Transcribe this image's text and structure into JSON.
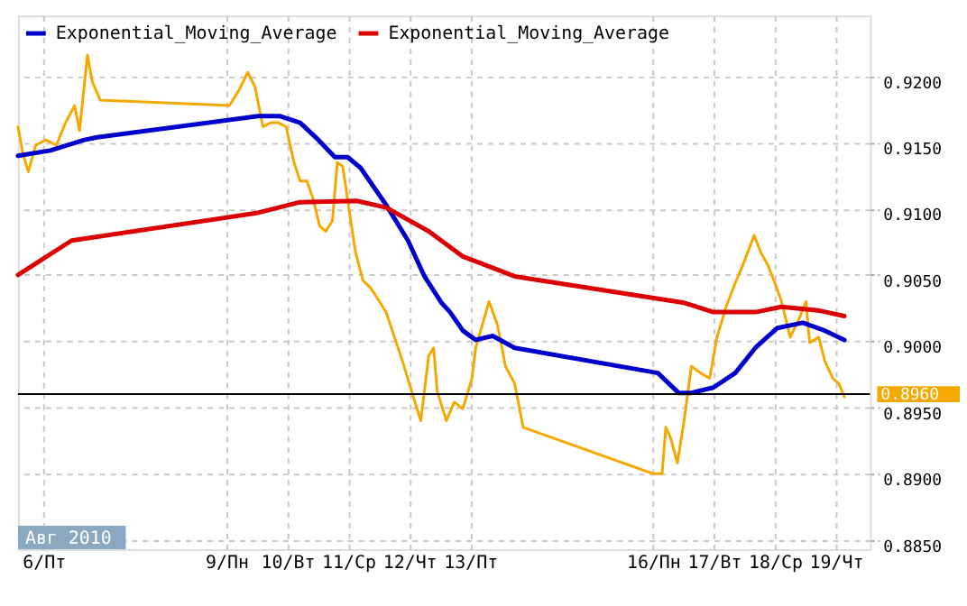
{
  "chart_data": {
    "type": "line",
    "legend": "top left",
    "grid": true,
    "xlim": [
      5.58,
      19.56
    ],
    "xticks": [
      {
        "value": 6,
        "label": "6/Пт"
      },
      {
        "value": 9,
        "label": "9/Пн"
      },
      {
        "value": 10,
        "label": "10/Вт"
      },
      {
        "value": 11,
        "label": "11/Ср"
      },
      {
        "value": 12,
        "label": "12/Чт"
      },
      {
        "value": 13,
        "label": "13/Пт"
      },
      {
        "value": 16,
        "label": "16/Пн"
      },
      {
        "value": 17,
        "label": "17/Вт"
      },
      {
        "value": 18,
        "label": "18/Ср"
      },
      {
        "value": 19,
        "label": "19/Чт"
      }
    ],
    "ylim": [
      0.8843,
      0.9246
    ],
    "yticks": [
      {
        "value": 0.885,
        "label": "0.8850"
      },
      {
        "value": 0.89,
        "label": "0.8900"
      },
      {
        "value": 0.895,
        "label": "0.8950"
      },
      {
        "value": 0.9,
        "label": "0.9000"
      },
      {
        "value": 0.905,
        "label": "0.9050"
      },
      {
        "value": 0.91,
        "label": "0.9100"
      },
      {
        "value": 0.915,
        "label": "0.9150"
      },
      {
        "value": 0.92,
        "label": "0.9200"
      }
    ],
    "series": [
      {
        "color": "#f5a800",
        "x": [
          5.58,
          5.66,
          5.75,
          5.87,
          6.04,
          6.21,
          6.36,
          6.51,
          6.59,
          6.72,
          6.8,
          6.93,
          9.05,
          9.2,
          9.35,
          9.47,
          9.6,
          9.73,
          9.85,
          9.98,
          10.11,
          10.21,
          10.32,
          10.42,
          10.53,
          10.63,
          10.74,
          10.82,
          10.91,
          11.03,
          11.12,
          11.24,
          11.37,
          11.47,
          11.62,
          11.89,
          12.04,
          12.19,
          12.32,
          12.4,
          12.46,
          12.61,
          12.74,
          12.88,
          13.03,
          13.09,
          13.31,
          13.45,
          13.58,
          13.73,
          13.87,
          16.0,
          16.15,
          16.21,
          16.29,
          16.4,
          16.51,
          16.63,
          16.78,
          16.93,
          17.05,
          17.2,
          17.35,
          17.47,
          17.66,
          17.77,
          17.89,
          18.0,
          18.11,
          18.25,
          18.4,
          18.51,
          18.57,
          18.72,
          18.82,
          18.95,
          19.05,
          19.14
        ],
        "values": [
          0.9162,
          0.9142,
          0.9128,
          0.9148,
          0.9152,
          0.9148,
          0.9165,
          0.9178,
          0.9159,
          0.9216,
          0.9196,
          0.9182,
          0.9178,
          0.9189,
          0.9203,
          0.9192,
          0.9162,
          0.9165,
          0.9165,
          0.9162,
          0.9135,
          0.9121,
          0.9121,
          0.9108,
          0.9087,
          0.9083,
          0.9091,
          0.9135,
          0.9132,
          0.9094,
          0.9067,
          0.9046,
          0.904,
          0.9033,
          0.9022,
          0.8985,
          0.8962,
          0.894,
          0.8989,
          0.8995,
          0.8962,
          0.894,
          0.8954,
          0.8949,
          0.8972,
          0.8995,
          0.903,
          0.9012,
          0.8981,
          0.8968,
          0.8935,
          0.89,
          0.89,
          0.8935,
          0.8927,
          0.8908,
          0.894,
          0.8981,
          0.8976,
          0.8972,
          0.9003,
          0.9026,
          0.9044,
          0.9057,
          0.908,
          0.9067,
          0.9057,
          0.9044,
          0.903,
          0.9003,
          0.9017,
          0.903,
          0.8999,
          0.9003,
          0.8985,
          0.8972,
          0.8968,
          0.8958
        ]
      },
      {
        "name": "Exponential_Moving_Average",
        "color": "#0000cc",
        "x": [
          5.58,
          6.11,
          6.67,
          6.88,
          9.52,
          9.87,
          10.21,
          10.51,
          10.78,
          10.99,
          11.2,
          11.62,
          11.98,
          12.25,
          12.53,
          12.67,
          12.88,
          13.09,
          13.37,
          13.73,
          16.08,
          16.42,
          16.63,
          16.99,
          17.35,
          17.68,
          18.04,
          18.46,
          18.82,
          19.14
        ],
        "values": [
          0.914,
          0.9144,
          0.9152,
          0.9154,
          0.917,
          0.917,
          0.9165,
          0.9152,
          0.9139,
          0.9139,
          0.9131,
          0.9103,
          0.9076,
          0.9049,
          0.9029,
          0.9022,
          0.9008,
          0.9001,
          0.9004,
          0.8995,
          0.8976,
          0.8961,
          0.8961,
          0.8965,
          0.8976,
          0.8995,
          0.901,
          0.9014,
          0.9008,
          0.9001
        ]
      },
      {
        "name": "Exponential_Moving_Average",
        "color": "#dd0000",
        "x": [
          5.58,
          6.46,
          9.52,
          10.21,
          11.14,
          11.62,
          12.32,
          12.88,
          13.73,
          16.51,
          16.99,
          17.68,
          18.11,
          18.74,
          19.14
        ],
        "values": [
          0.905,
          0.9076,
          0.9097,
          0.9105,
          0.9106,
          0.9101,
          0.9083,
          0.9064,
          0.9049,
          0.9029,
          0.9022,
          0.9022,
          0.9026,
          0.9023,
          0.9019
        ]
      }
    ],
    "ref_lines": [
      {
        "axis": "y",
        "value": 0.896,
        "label": "0.8960",
        "color": "#000000"
      }
    ],
    "annotations": [
      "Авг 2010"
    ]
  }
}
